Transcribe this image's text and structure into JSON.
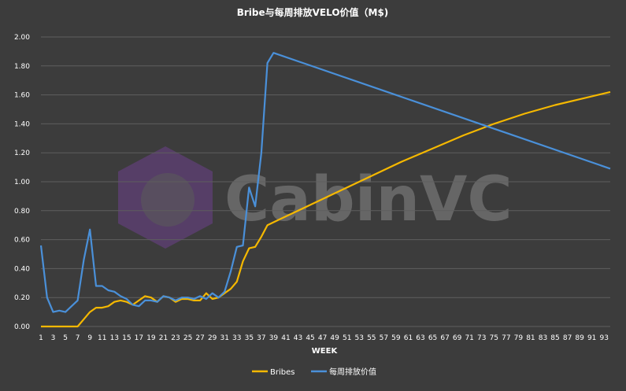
{
  "chart_data": {
    "type": "line",
    "title": "Bribe与每周排放VELO价值（M$)",
    "xlabel": "WEEK",
    "ylabel": "",
    "ylim": [
      0,
      2.0
    ],
    "yticks": [
      "0.00",
      "0.20",
      "0.40",
      "0.60",
      "0.80",
      "1.00",
      "1.20",
      "1.40",
      "1.60",
      "1.80",
      "2.00"
    ],
    "xlim": [
      1,
      94
    ],
    "xticks": [
      1,
      3,
      5,
      7,
      9,
      11,
      13,
      15,
      17,
      19,
      21,
      23,
      25,
      27,
      29,
      31,
      33,
      35,
      37,
      39,
      41,
      43,
      45,
      47,
      49,
      51,
      53,
      55,
      57,
      59,
      61,
      63,
      65,
      67,
      69,
      71,
      73,
      75,
      77,
      79,
      81,
      83,
      85,
      87,
      89,
      91,
      93
    ],
    "grid": true,
    "legend_position": "bottom",
    "series": [
      {
        "name": "Bribes",
        "color": "#f5b800",
        "x": [
          1,
          2,
          3,
          4,
          5,
          6,
          7,
          8,
          9,
          10,
          11,
          12,
          13,
          14,
          15,
          16,
          17,
          18,
          19,
          20,
          21,
          22,
          23,
          24,
          25,
          26,
          27,
          28,
          29,
          30,
          31,
          32,
          33,
          34,
          35,
          36,
          37,
          38,
          39,
          40,
          45,
          50,
          55,
          60,
          65,
          70,
          75,
          80,
          85,
          90,
          94
        ],
        "values": [
          0,
          0,
          0,
          0,
          0,
          0,
          0,
          0.05,
          0.1,
          0.13,
          0.13,
          0.14,
          0.17,
          0.18,
          0.17,
          0.15,
          0.18,
          0.21,
          0.2,
          0.17,
          0.21,
          0.2,
          0.17,
          0.19,
          0.19,
          0.18,
          0.18,
          0.23,
          0.19,
          0.2,
          0.23,
          0.26,
          0.31,
          0.45,
          0.54,
          0.55,
          0.62,
          0.7,
          0.72,
          0.74,
          0.84,
          0.94,
          1.04,
          1.14,
          1.23,
          1.32,
          1.4,
          1.47,
          1.53,
          1.58,
          1.62
        ]
      },
      {
        "name": "每周排放价值",
        "color": "#4a90d9",
        "x": [
          1,
          2,
          3,
          4,
          5,
          6,
          7,
          8,
          9,
          10,
          11,
          12,
          13,
          14,
          15,
          16,
          17,
          18,
          19,
          20,
          21,
          22,
          23,
          24,
          25,
          26,
          27,
          28,
          29,
          30,
          31,
          32,
          33,
          34,
          35,
          36,
          37,
          38,
          39,
          94
        ],
        "values": [
          0.56,
          0.2,
          0.1,
          0.11,
          0.1,
          0.14,
          0.18,
          0.46,
          0.67,
          0.28,
          0.28,
          0.25,
          0.24,
          0.21,
          0.19,
          0.15,
          0.14,
          0.18,
          0.18,
          0.17,
          0.21,
          0.2,
          0.18,
          0.2,
          0.2,
          0.19,
          0.21,
          0.19,
          0.23,
          0.2,
          0.24,
          0.38,
          0.55,
          0.56,
          0.96,
          0.83,
          1.2,
          1.82,
          1.89,
          1.09
        ]
      }
    ]
  },
  "watermark": {
    "text": "CabinVC",
    "logo_icon": "cabin-logo-icon"
  }
}
